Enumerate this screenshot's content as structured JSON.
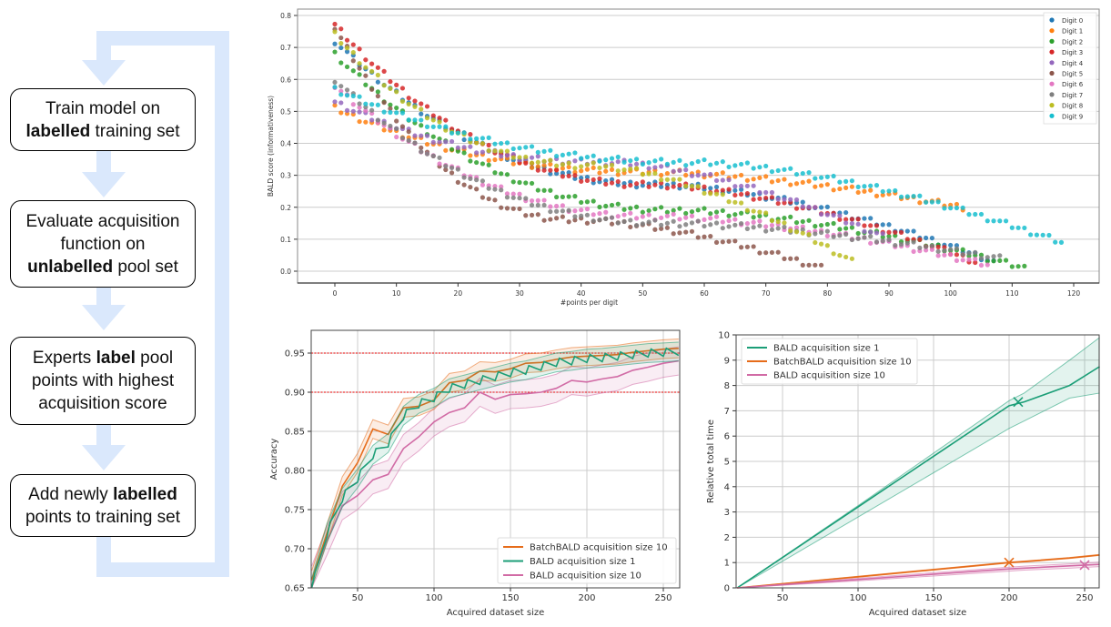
{
  "flowchart": {
    "steps": [
      {
        "lines": [
          [
            {
              "t": "Train model on",
              "b": false
            }
          ],
          [
            {
              "t": "labelled",
              "b": true
            },
            {
              "t": " training set",
              "b": false
            }
          ]
        ]
      },
      {
        "lines": [
          [
            {
              "t": "Evaluate acquisition",
              "b": false
            }
          ],
          [
            {
              "t": "function on",
              "b": false
            }
          ],
          [
            {
              "t": "unlabelled",
              "b": true
            },
            {
              "t": " pool set",
              "b": false
            }
          ]
        ]
      },
      {
        "lines": [
          [
            {
              "t": "Experts ",
              "b": false
            },
            {
              "t": "label",
              "b": true
            },
            {
              "t": " pool",
              "b": false
            }
          ],
          [
            {
              "t": "points with highest",
              "b": false
            }
          ],
          [
            {
              "t": "acquisition score",
              "b": false
            }
          ]
        ]
      },
      {
        "lines": [
          [
            {
              "t": "Add newly ",
              "b": false
            },
            {
              "t": "labelled",
              "b": true
            }
          ],
          [
            {
              "t": "points to training set",
              "b": false
            }
          ]
        ]
      }
    ],
    "colors": {
      "arrow": "#dae8fc",
      "border": "#000000"
    }
  },
  "chart_data": [
    {
      "type": "scatter",
      "title": "",
      "xlabel": "#points per digit",
      "ylabel": "BALD score (informativeness)",
      "xlim": [
        -6,
        124
      ],
      "ylim": [
        -0.03,
        0.82
      ],
      "xticks": [
        "0",
        "10",
        "20",
        "30",
        "40",
        "50",
        "60",
        "70",
        "80",
        "90",
        "100",
        "110",
        "120"
      ],
      "yticks": [
        "0.0",
        "0.1",
        "0.2",
        "0.3",
        "0.4",
        "0.5",
        "0.6",
        "0.7",
        "0.8"
      ],
      "grid": "horizontal",
      "legend_position": "top-right",
      "series": [
        {
          "name": "Digit 0",
          "color": "#1f77b4",
          "start": 0.72,
          "mid": 0.27,
          "end": 0.03,
          "n": 108
        },
        {
          "name": "Digit 1",
          "color": "#ff7f0e",
          "start": 0.51,
          "mid": 0.31,
          "end": 0.2,
          "n": 103
        },
        {
          "name": "Digit 2",
          "color": "#2ca02c",
          "start": 0.68,
          "mid": 0.19,
          "end": 0.01,
          "n": 113
        },
        {
          "name": "Digit 3",
          "color": "#d62728",
          "start": 0.77,
          "mid": 0.27,
          "end": 0.03,
          "n": 105
        },
        {
          "name": "Digit 4",
          "color": "#9467bd",
          "start": 0.53,
          "mid": 0.34,
          "end": 0.1,
          "n": 91
        },
        {
          "name": "Digit 5",
          "color": "#8c564b",
          "start": 0.76,
          "mid": 0.16,
          "end": 0.01,
          "n": 80
        },
        {
          "name": "Digit 6",
          "color": "#e377c2",
          "start": 0.58,
          "mid": 0.17,
          "end": 0.02,
          "n": 107
        },
        {
          "name": "Digit 7",
          "color": "#7f7f7f",
          "start": 0.6,
          "mid": 0.15,
          "end": 0.04,
          "n": 109
        },
        {
          "name": "Digit 8",
          "color": "#bcbd22",
          "start": 0.74,
          "mid": 0.33,
          "end": 0.03,
          "n": 85
        },
        {
          "name": "Digit 9",
          "color": "#17becf",
          "start": 0.57,
          "mid": 0.34,
          "end": 0.09,
          "n": 119
        }
      ]
    },
    {
      "type": "line",
      "title": "",
      "xlabel": "Acquired dataset size",
      "ylabel": "Accuracy",
      "xlim": [
        20,
        260
      ],
      "ylim": [
        0.65,
        0.98
      ],
      "xticks": [
        "50",
        "100",
        "150",
        "200",
        "250"
      ],
      "yticks": [
        "0.65",
        "0.70",
        "0.75",
        "0.80",
        "0.85",
        "0.90",
        "0.95"
      ],
      "grid": "both",
      "reference_lines": [
        0.95,
        0.9
      ],
      "legend_position": "bottom-right",
      "x": [
        20,
        30,
        40,
        50,
        60,
        70,
        80,
        90,
        100,
        110,
        120,
        130,
        140,
        150,
        160,
        170,
        180,
        190,
        200,
        210,
        220,
        230,
        240,
        250,
        260
      ],
      "series": [
        {
          "name": "BatchBALD acquisition size 10",
          "color": "#e66c1a",
          "values": [
            0.66,
            0.72,
            0.78,
            0.81,
            0.853,
            0.846,
            0.88,
            0.882,
            0.89,
            0.912,
            0.915,
            0.927,
            0.926,
            0.93,
            0.937,
            0.938,
            0.942,
            0.945,
            0.946,
            0.947,
            0.948,
            0.951,
            0.953,
            0.955,
            0.956
          ],
          "band": 0.012
        },
        {
          "name": "BALD acquisition size 1",
          "color": "#1b9e77",
          "values": [
            0.65,
            0.72,
            0.765,
            0.79,
            0.82,
            0.835,
            0.87,
            0.885,
            0.893,
            0.905,
            0.91,
            0.915,
            0.92,
            0.925,
            0.928,
            0.933,
            0.938,
            0.94,
            0.943,
            0.944,
            0.946,
            0.948,
            0.95,
            0.951,
            0.952
          ],
          "band": 0.012
        },
        {
          "name": "BALD acquisition size 10",
          "color": "#d16ba5",
          "values": [
            0.66,
            0.71,
            0.755,
            0.768,
            0.788,
            0.795,
            0.828,
            0.843,
            0.862,
            0.874,
            0.88,
            0.9,
            0.891,
            0.897,
            0.898,
            0.9,
            0.905,
            0.915,
            0.913,
            0.917,
            0.92,
            0.928,
            0.932,
            0.937,
            0.94
          ],
          "band": 0.018
        }
      ]
    },
    {
      "type": "line",
      "title": "",
      "xlabel": "Acquired dataset size",
      "ylabel": "Relative total time",
      "xlim": [
        20,
        260
      ],
      "ylim": [
        0,
        10
      ],
      "xticks": [
        "50",
        "100",
        "150",
        "200",
        "250"
      ],
      "yticks": [
        "0",
        "1",
        "2",
        "3",
        "4",
        "5",
        "6",
        "7",
        "8",
        "9",
        "10"
      ],
      "grid": "both",
      "legend_position": "top-left",
      "x": [
        20,
        100,
        200,
        210,
        240,
        260
      ],
      "series": [
        {
          "name": "BALD acquisition size 1",
          "color": "#1b9e77",
          "values": [
            0,
            3.2,
            7.2,
            7.35,
            8.0,
            8.75
          ],
          "upper": [
            0,
            3.25,
            7.4,
            7.7,
            9.0,
            9.9
          ],
          "lower": [
            0,
            2.8,
            6.3,
            6.6,
            7.5,
            7.7
          ],
          "marker": {
            "x": 206,
            "y": 7.35
          }
        },
        {
          "name": "BatchBALD acquisition size 10",
          "color": "#e66c1a",
          "values": [
            0,
            0.44,
            1.0,
            1.04,
            1.18,
            1.3
          ],
          "upper": [
            0,
            0.46,
            1.02,
            1.06,
            1.2,
            1.32
          ],
          "lower": [
            0,
            0.42,
            0.98,
            1.02,
            1.16,
            1.28
          ],
          "marker": {
            "x": 200,
            "y": 1.0
          }
        },
        {
          "name": "BALD acquisition size 10",
          "color": "#d16ba5",
          "values": [
            0,
            0.33,
            0.75,
            0.78,
            0.87,
            0.93
          ],
          "upper": [
            0,
            0.38,
            0.82,
            0.86,
            0.95,
            1.02
          ],
          "lower": [
            0,
            0.28,
            0.66,
            0.7,
            0.78,
            0.84
          ],
          "marker": {
            "x": 250,
            "y": 0.9
          }
        }
      ]
    }
  ]
}
